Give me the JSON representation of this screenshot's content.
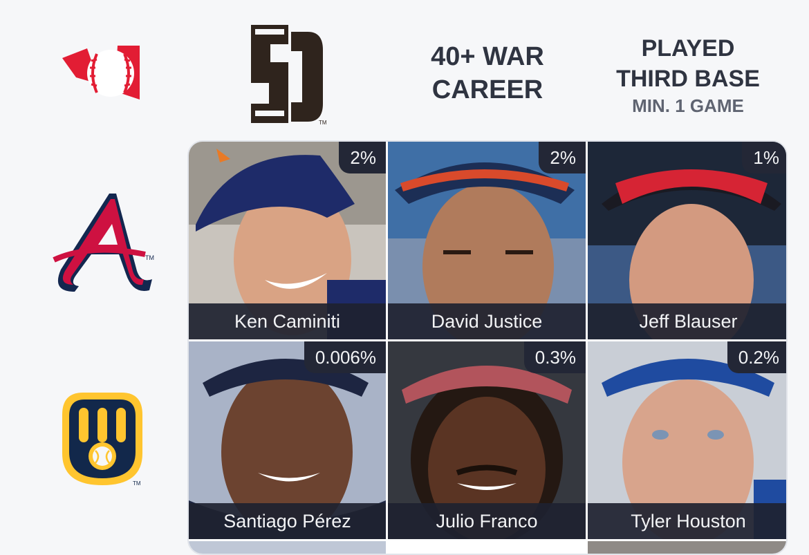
{
  "corner_logo": {
    "icon": "immaculate-grid-logo-icon",
    "color": "#e21d34"
  },
  "columns": [
    {
      "icon": "padres-sd-logo-icon",
      "color": "#2f241d"
    },
    {
      "line1": "40+ WAR",
      "line2": "CAREER"
    },
    {
      "line1": "PLAYED",
      "line2": "THIRD BASE",
      "line3": "MIN. 1 GAME"
    }
  ],
  "rows": [
    {
      "icon": "braves-logo-icon",
      "color": "#ce1141"
    },
    {
      "icon": "brewers-logo-icon",
      "color": "#12284b"
    }
  ],
  "cells": [
    {
      "name": "Ken Caminiti",
      "pct": "2%"
    },
    {
      "name": "David Justice",
      "pct": "2%"
    },
    {
      "name": "Jeff Blauser",
      "pct": "1%"
    },
    {
      "name": "Santiago Pérez",
      "pct": "0.006%"
    },
    {
      "name": "Julio Franco",
      "pct": "0.3%"
    },
    {
      "name": "Tyler Houston",
      "pct": "0.2%"
    }
  ]
}
